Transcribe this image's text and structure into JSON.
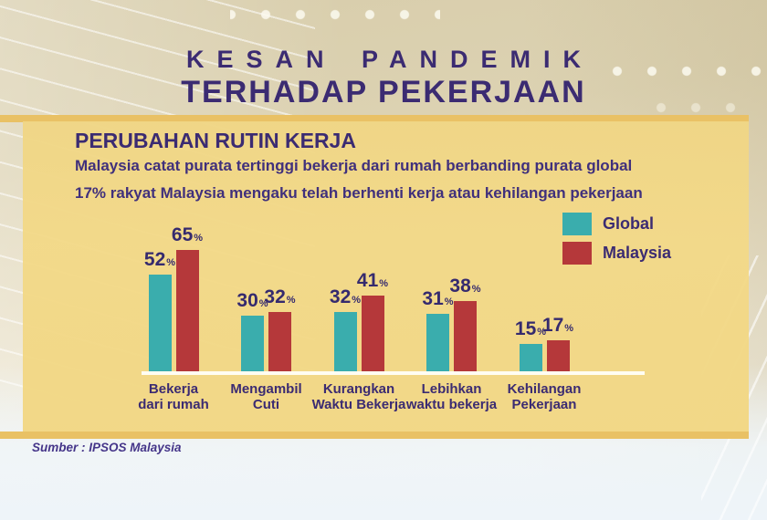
{
  "header": {
    "title_line1": "KESAN PANDEMIK",
    "title_line2": "TERHADAP PEKERJAAN"
  },
  "panel": {
    "heading": "PERUBAHAN RUTIN KERJA",
    "subtitle1": "Malaysia catat purata tertinggi bekerja dari rumah berbanding purata global",
    "subtitle2": "17% rakyat Malaysia mengaku telah berhenti kerja atau kehilangan pekerjaan"
  },
  "footer": {
    "source": "Sumber : IPSOS Malaysia"
  },
  "colors": {
    "title_purple": "#3b2b72",
    "panel_gold": "#f2d787",
    "ribbon_amber": "#e9c165",
    "global_teal": "#3aadad",
    "malaysia_red": "#b5383a",
    "baseline_white": "#fffdf2"
  },
  "chart_data": {
    "type": "bar",
    "title": "PERUBAHAN RUTIN KERJA",
    "unit": "%",
    "categories": [
      "Bekerja dari rumah",
      "Mengambil Cuti",
      "Kurangkan Waktu Bekerja",
      "Lebihkan waktu bekerja",
      "Kehilangan Pekerjaan"
    ],
    "category_lines": [
      [
        "Bekerja",
        "dari rumah"
      ],
      [
        "Mengambil",
        "Cuti"
      ],
      [
        "Kurangkan",
        "Waktu Bekerja"
      ],
      [
        "Lebihkan",
        "waktu bekerja"
      ],
      [
        "Kehilangan",
        "Pekerjaan"
      ]
    ],
    "series": [
      {
        "name": "Global",
        "color": "#3aadad",
        "values": [
          52,
          30,
          32,
          31,
          15
        ]
      },
      {
        "name": "Malaysia",
        "color": "#b5383a",
        "values": [
          65,
          32,
          41,
          38,
          17
        ]
      }
    ],
    "ylim": [
      0,
      70
    ],
    "grid": false,
    "legend_position": "top-right",
    "xlabel": "",
    "ylabel": ""
  }
}
